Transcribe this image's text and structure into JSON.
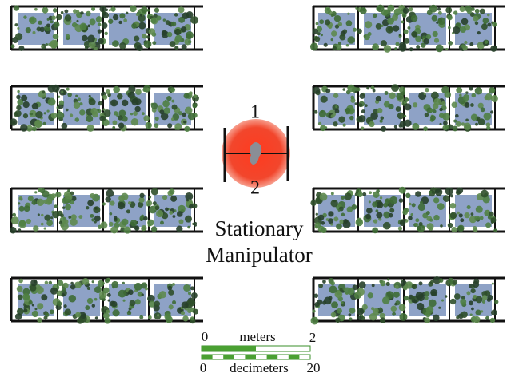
{
  "manipulator": {
    "top_label": "1",
    "bottom_label": "2",
    "caption": [
      "Stationary",
      "Manipulator"
    ]
  },
  "scale_bar": {
    "meters": {
      "start": "0",
      "unit": "meters",
      "end": "2"
    },
    "decimeters": {
      "start": "0",
      "unit": "decimeters",
      "end": "20"
    }
  }
}
